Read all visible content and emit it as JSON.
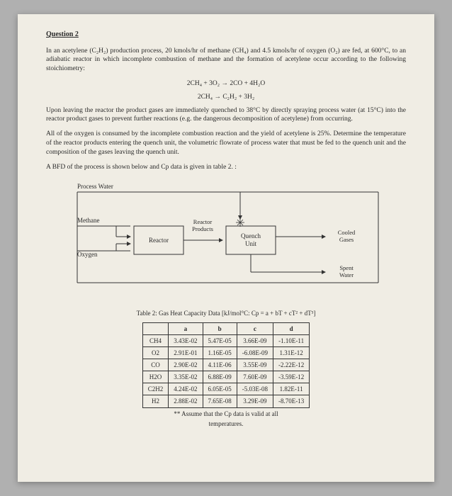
{
  "title": "Question 2",
  "para1": "In an acetylene (C₂H₂) production process, 20 kmols/hr of methane (CH₄) and 4.5 kmols/hr of oxygen (O₂) are fed, at 600°C, to an adiabatic reactor in which incomplete combustion of methane and the formation of acetylene occur according to the following stoichiometry:",
  "eq1": "2CH₄ + 3O₂ → 2CO + 4H₂O",
  "eq2": "2CH₄ → C₂H₂ + 3H₂",
  "para2": "Upon leaving the reactor the product gases are immediately quenched to 38°C by directly spraying process water (at 15°C) into the reactor product gases to prevent further reactions (e.g. the dangerous decomposition of acetylene) from occurring.",
  "para3": "All of the oxygen is consumed by the incomplete combustion reaction and the yield of acetylene is 25%. Determine the temperature of the reactor products entering the quench unit, the volumetric flowrate of process water that must be fed to the quench unit and the composition of the gases leaving the quench unit.",
  "para4": "A BFD of the process is shown below and Cp data is given in table 2. :",
  "diagram": {
    "labels": {
      "process_water": "Process Water",
      "methane": "Methane",
      "oxygen": "Oxygen",
      "reactor": "Reactor",
      "reactor_products": "Reactor\nProducts",
      "quench": "Quench\nUnit",
      "cooled": "Cooled\nGases",
      "spent": "Spent\nWater"
    },
    "colors": {
      "stroke": "#333333",
      "text": "#2a2a2a",
      "bg": "#f0ede4"
    }
  },
  "table": {
    "caption": "Table 2: Gas Heat Capacity Data [kJ/mol°C: Cp = a + bT + cT² + dT³]",
    "headers": [
      "",
      "a",
      "b",
      "c",
      "d"
    ],
    "rows": [
      [
        "CH4",
        "3.43E-02",
        "5.47E-05",
        "3.66E-09",
        "-1.10E-11"
      ],
      [
        "O2",
        "2.91E-01",
        "1.16E-05",
        "-6.08E-09",
        "1.31E-12"
      ],
      [
        "CO",
        "2.90E-02",
        "4.11E-06",
        "3.55E-09",
        "-2.22E-12"
      ],
      [
        "H2O",
        "3.35E-02",
        "6.88E-09",
        "7.60E-09",
        "-3.59E-12"
      ],
      [
        "C2H2",
        "4.24E-02",
        "6.05E-05",
        "-5.03E-08",
        "1.82E-11"
      ],
      [
        "H2",
        "2.88E-02",
        "7.65E-08",
        "3.29E-09",
        "-8.70E-13"
      ]
    ],
    "footnote1": "** Assume that the Cp data is valid at all",
    "footnote2": "temperatures."
  }
}
